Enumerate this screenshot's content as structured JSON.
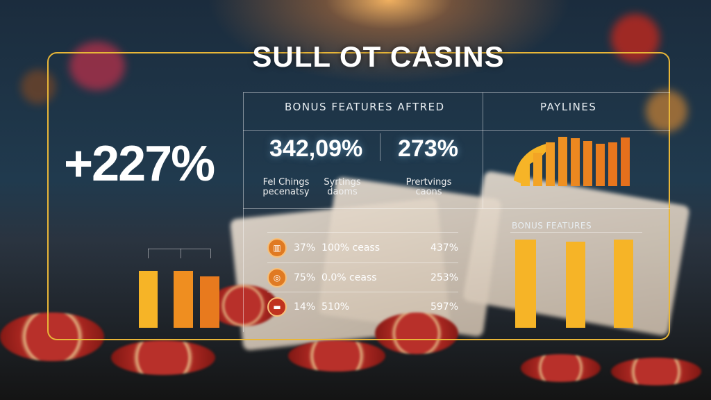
{
  "title": "SULL OT CASINS",
  "headline_value": "+227%",
  "bonus_panel": {
    "header": "BONUS FEATURES AFTRED",
    "stats": [
      {
        "value": "342,09%"
      },
      {
        "value": "273%"
      }
    ],
    "captions": [
      "Fel Chings pecenatsy",
      "Syrtings daoms",
      "Prertvings caons"
    ],
    "rows": [
      {
        "icon": "slot-icon",
        "a": "37%",
        "b": "100% ceass",
        "c": "437%"
      },
      {
        "icon": "coins-icon",
        "a": "75%",
        "b": "0.0% ceass",
        "c": "253%"
      },
      {
        "icon": "ticket-icon",
        "a": "14%",
        "b": "510%",
        "c": "597%"
      }
    ]
  },
  "paylines": {
    "header": "PAYLINES"
  },
  "bonus_features": {
    "header": "BONUS FEATURES"
  },
  "colors": {
    "accent": "#e8b638",
    "orange": "#e87a1e",
    "yellow": "#f6b427"
  }
}
